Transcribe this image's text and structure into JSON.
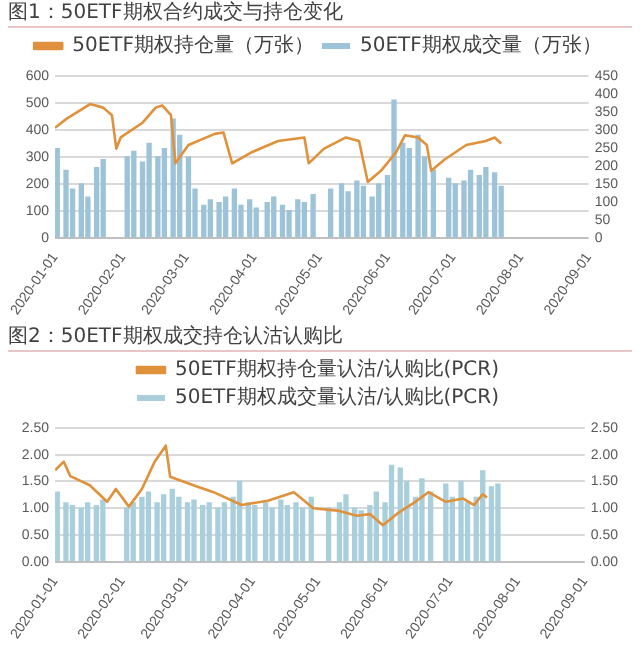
{
  "chart_data": [
    {
      "type": "bar",
      "title": "图1：50ETF期权合约成交与持仓变化",
      "legend": "top",
      "grid": "y",
      "xlim": [
        "2020-01-01",
        "2020-09-01"
      ],
      "xticks": [
        "2020-01-01",
        "2020-02-01",
        "2020-03-01",
        "2020-04-01",
        "2020-05-01",
        "2020-06-01",
        "2020-07-01",
        "2020-08-01",
        "2020-09-01"
      ],
      "ylim": [
        0,
        600
      ],
      "yticks": [
        0,
        100,
        200,
        300,
        400,
        500,
        600
      ],
      "y2lim": [
        0,
        450
      ],
      "y2ticks": [
        0,
        50,
        100,
        150,
        200,
        250,
        300,
        350,
        400,
        450
      ],
      "series": [
        {
          "name": "50ETF期权成交量（万张）",
          "axis": "y",
          "color": "#9dc3d8",
          "x": [
            "2020-01-02",
            "2020-01-06",
            "2020-01-09",
            "2020-01-13",
            "2020-01-16",
            "2020-01-20",
            "2020-01-23",
            "2020-02-03",
            "2020-02-06",
            "2020-02-10",
            "2020-02-13",
            "2020-02-17",
            "2020-02-20",
            "2020-02-24",
            "2020-02-27",
            "2020-03-02",
            "2020-03-05",
            "2020-03-09",
            "2020-03-12",
            "2020-03-16",
            "2020-03-19",
            "2020-03-23",
            "2020-03-26",
            "2020-03-30",
            "2020-04-02",
            "2020-04-07",
            "2020-04-10",
            "2020-04-14",
            "2020-04-17",
            "2020-04-21",
            "2020-04-24",
            "2020-04-28",
            "2020-05-06",
            "2020-05-11",
            "2020-05-14",
            "2020-05-18",
            "2020-05-21",
            "2020-05-25",
            "2020-05-28",
            "2020-06-01",
            "2020-06-04",
            "2020-06-08",
            "2020-06-11",
            "2020-06-15",
            "2020-06-18",
            "2020-06-22",
            "2020-06-29",
            "2020-07-02",
            "2020-07-06",
            "2020-07-09",
            "2020-07-13",
            "2020-07-16",
            "2020-07-20",
            "2020-07-23"
          ],
          "values": [
            330,
            250,
            180,
            200,
            150,
            260,
            290,
            300,
            320,
            280,
            350,
            300,
            330,
            440,
            380,
            300,
            180,
            120,
            140,
            130,
            150,
            180,
            120,
            140,
            110,
            130,
            150,
            120,
            100,
            140,
            130,
            160,
            180,
            200,
            170,
            210,
            190,
            150,
            200,
            230,
            510,
            350,
            330,
            380,
            300,
            250,
            220,
            200,
            210,
            250,
            230,
            260,
            240,
            190
          ]
        },
        {
          "name": "50ETF期权持仓量（万张）",
          "type": "line",
          "axis": "y2",
          "color": "#e0913c",
          "x": [
            "2020-01-01",
            "2020-01-06",
            "2020-01-17",
            "2020-01-23",
            "2020-01-27",
            "2020-01-29",
            "2020-01-31",
            "2020-02-10",
            "2020-02-16",
            "2020-02-19",
            "2020-02-23",
            "2020-02-25",
            "2020-03-02",
            "2020-03-14",
            "2020-03-18",
            "2020-03-22",
            "2020-03-31",
            "2020-04-12",
            "2020-04-24",
            "2020-04-26",
            "2020-05-03",
            "2020-05-13",
            "2020-05-19",
            "2020-05-23",
            "2020-05-29",
            "2020-06-05",
            "2020-06-09",
            "2020-06-15",
            "2020-06-19",
            "2020-06-21",
            "2020-06-27",
            "2020-07-07",
            "2020-07-16",
            "2020-07-20",
            "2020-07-23"
          ],
          "values": [
            306,
            330,
            372,
            362,
            341,
            248,
            279,
            320,
            362,
            368,
            341,
            207,
            258,
            289,
            293,
            207,
            238,
            269,
            279,
            207,
            248,
            279,
            269,
            155,
            186,
            238,
            285,
            279,
            258,
            186,
            217,
            258,
            269,
            279,
            262
          ]
        }
      ]
    },
    {
      "type": "bar",
      "title": "图2：50ETF期权成交持仓认沽认购比",
      "legend": "top",
      "grid": "y",
      "xlim": [
        "2020-01-01",
        "2020-09-01"
      ],
      "xticks": [
        "2020-01-01",
        "2020-02-01",
        "2020-03-01",
        "2020-04-01",
        "2020-05-01",
        "2020-06-01",
        "2020-07-01",
        "2020-08-01",
        "2020-09-01"
      ],
      "ylim": [
        0,
        2.5
      ],
      "yticks": [
        {
          "value": 0,
          "label": "0.00"
        },
        {
          "value": 0.5,
          "label": "0.50"
        },
        {
          "value": 1,
          "label": "1.00"
        },
        {
          "value": 1.5,
          "label": "1.50"
        },
        {
          "value": 2,
          "label": "2.00"
        },
        {
          "value": 2.5,
          "label": "2.50"
        }
      ],
      "y2lim": [
        0,
        2.5
      ],
      "y2ticks": [
        {
          "value": 0,
          "label": "0.00"
        },
        {
          "value": 0.5,
          "label": "0.50"
        },
        {
          "value": 1,
          "label": "1.00"
        },
        {
          "value": 1.5,
          "label": "1.50"
        },
        {
          "value": 2,
          "label": "2.00"
        },
        {
          "value": 2.5,
          "label": "2.50"
        }
      ],
      "series": [
        {
          "name": "50ETF期权成交量认沽/认购比(PCR)",
          "axis": "y",
          "color": "#a9cfdc",
          "x": [
            "2020-01-02",
            "2020-01-06",
            "2020-01-09",
            "2020-01-13",
            "2020-01-16",
            "2020-01-20",
            "2020-01-23",
            "2020-02-03",
            "2020-02-06",
            "2020-02-10",
            "2020-02-13",
            "2020-02-17",
            "2020-02-20",
            "2020-02-24",
            "2020-02-27",
            "2020-03-02",
            "2020-03-05",
            "2020-03-09",
            "2020-03-12",
            "2020-03-16",
            "2020-03-19",
            "2020-03-23",
            "2020-03-26",
            "2020-03-30",
            "2020-04-02",
            "2020-04-07",
            "2020-04-10",
            "2020-04-14",
            "2020-04-17",
            "2020-04-21",
            "2020-04-24",
            "2020-04-28",
            "2020-05-06",
            "2020-05-11",
            "2020-05-14",
            "2020-05-18",
            "2020-05-21",
            "2020-05-25",
            "2020-05-28",
            "2020-06-01",
            "2020-06-04",
            "2020-06-08",
            "2020-06-11",
            "2020-06-15",
            "2020-06-18",
            "2020-06-22",
            "2020-06-29",
            "2020-07-02",
            "2020-07-06",
            "2020-07-09",
            "2020-07-13",
            "2020-07-16",
            "2020-07-20",
            "2020-07-23"
          ],
          "values": [
            1.3,
            1.1,
            1.05,
            1.0,
            1.1,
            1.05,
            1.15,
            1.0,
            1.1,
            1.2,
            1.3,
            1.1,
            1.25,
            1.35,
            1.2,
            1.1,
            1.15,
            1.05,
            1.1,
            1.0,
            1.1,
            1.2,
            1.5,
            1.1,
            1.05,
            1.1,
            1.0,
            1.15,
            1.05,
            1.1,
            1.0,
            1.2,
            1.0,
            1.1,
            1.25,
            1.0,
            0.95,
            1.05,
            1.3,
            1.1,
            1.8,
            1.75,
            1.5,
            1.2,
            1.55,
            1.3,
            1.45,
            1.2,
            1.5,
            1.1,
            1.2,
            1.7,
            1.4,
            1.45
          ]
        },
        {
          "name": "50ETF期权持仓量认沽/认购比(PCR)",
          "type": "line",
          "axis": "y2",
          "color": "#e0913c",
          "x": [
            "2020-01-01",
            "2020-01-05",
            "2020-01-08",
            "2020-01-17",
            "2020-01-25",
            "2020-01-29",
            "2020-02-04",
            "2020-02-10",
            "2020-02-16",
            "2020-02-21",
            "2020-02-23",
            "2020-02-29",
            "2020-03-06",
            "2020-03-14",
            "2020-03-27",
            "2020-04-08",
            "2020-04-20",
            "2020-04-29",
            "2020-05-11",
            "2020-05-19",
            "2020-05-25",
            "2020-05-31",
            "2020-06-07",
            "2020-06-15",
            "2020-06-21",
            "2020-06-29",
            "2020-07-07",
            "2020-07-12",
            "2020-07-16",
            "2020-07-18"
          ],
          "values": [
            1.71,
            1.87,
            1.6,
            1.43,
            1.12,
            1.36,
            1.03,
            1.36,
            1.88,
            2.17,
            1.59,
            1.5,
            1.41,
            1.3,
            1.06,
            1.14,
            1.3,
            1.0,
            0.95,
            0.86,
            0.89,
            0.68,
            0.91,
            1.12,
            1.3,
            1.12,
            1.18,
            1.06,
            1.26,
            1.2
          ]
        }
      ]
    }
  ]
}
